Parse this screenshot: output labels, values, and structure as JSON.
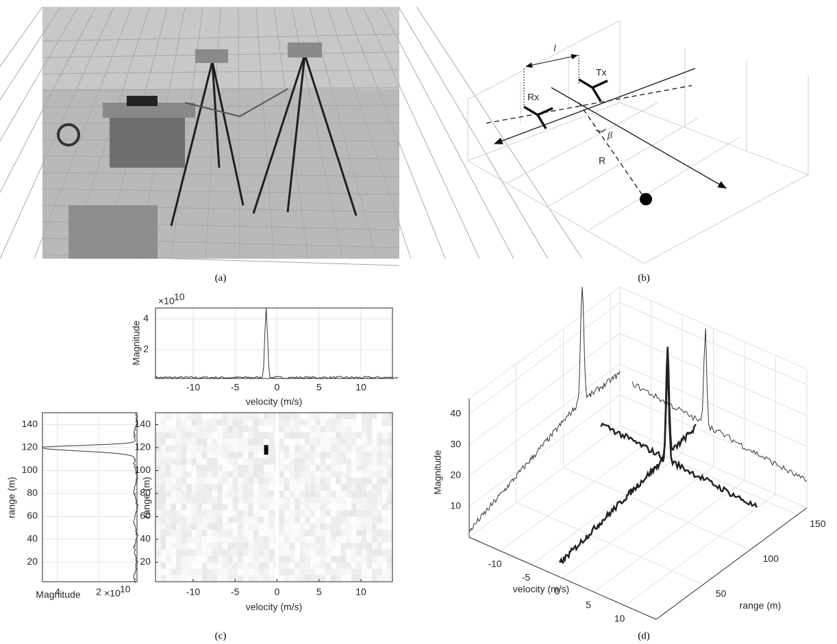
{
  "panels": [
    {
      "caption": "(a)"
    },
    {
      "caption": "(b)",
      "labels": {
        "l": "l",
        "tx": "Tx",
        "rx": "Rx",
        "beta": "β",
        "r": "R"
      }
    },
    {
      "caption": "(c)",
      "plots": [
        {
          "ylabel": "Magnitude",
          "xlabel": "velocity (m/s)",
          "exponent": {
            "base": "×10",
            "power": "10"
          },
          "xticks": [
            -10,
            -5,
            0,
            5,
            10
          ],
          "yticks": [
            2,
            4
          ]
        },
        {
          "ylabel": "range (m)",
          "xlabel": "Magnitude",
          "exponent": {
            "base": "×10",
            "power": "10"
          },
          "xticks": [
            4,
            2
          ],
          "yticks": [
            20,
            40,
            60,
            80,
            100,
            120,
            140
          ]
        },
        {
          "ylabel": "range (m)",
          "xlabel": "velocity (m/s)",
          "xticks": [
            -10,
            -5,
            0,
            5,
            10
          ],
          "yticks": [
            20,
            40,
            60,
            80,
            100,
            120,
            140
          ]
        }
      ]
    },
    {
      "caption": "(d)",
      "zlabel": "Magnitude",
      "xlabel": "velocity (m/s)",
      "ylabel": "range (m)",
      "zticks": [
        10,
        20,
        30,
        40
      ],
      "xticks": [
        -10,
        -5,
        0,
        5,
        10
      ],
      "yticks": [
        50,
        100,
        150
      ]
    }
  ]
}
